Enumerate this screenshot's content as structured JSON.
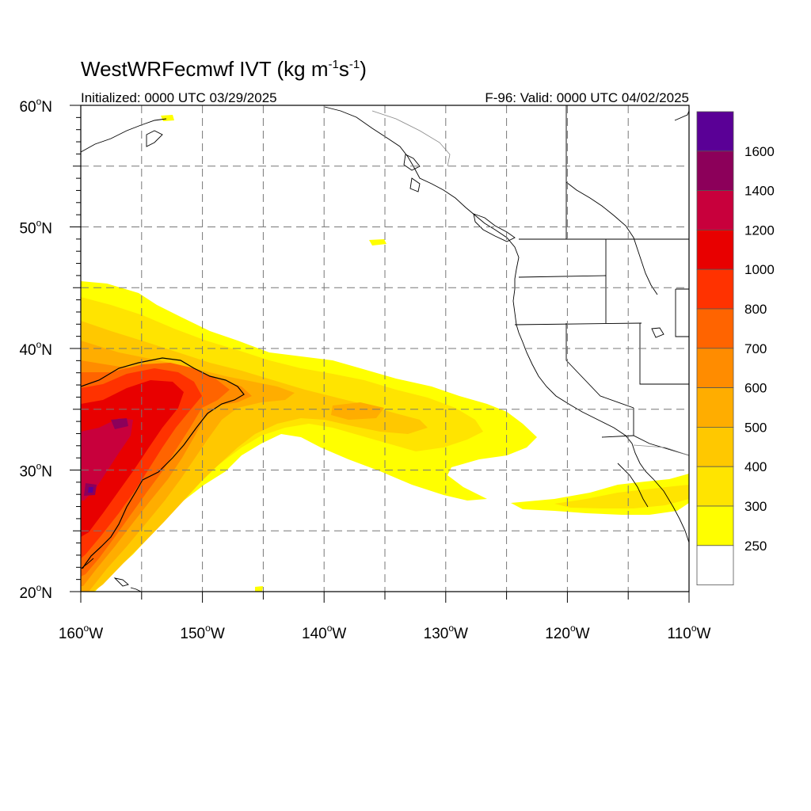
{
  "title": {
    "main": "WestWRFecmwf IVT (kg m",
    "sup1": "-1",
    "mid": "s",
    "sup2": "-1",
    "end": ")"
  },
  "initialized": "Initialized: 0000 UTC 03/29/2025",
  "valid": "F-96: Valid: 0000 UTC 04/02/2025",
  "map": {
    "lon_range": [
      -160,
      -110
    ],
    "lat_range": [
      20,
      60
    ],
    "projection": "cylindrical equidistant",
    "grid": "dashed every 5 degrees",
    "lat_labels": [
      "60",
      "50",
      "40",
      "30",
      "20"
    ],
    "lon_labels": [
      "160",
      "150",
      "140",
      "130",
      "120",
      "110"
    ],
    "lat_suffix": "N",
    "lon_suffix": "W",
    "degree": "o"
  },
  "colorbar": {
    "levels": [
      "250",
      "300",
      "400",
      "500",
      "600",
      "700",
      "800",
      "1000",
      "1200",
      "1400",
      "1600"
    ],
    "colors": [
      "#ffffff",
      "#ffff00",
      "#ffe400",
      "#ffc800",
      "#ffad00",
      "#ff8c00",
      "#ff6400",
      "#ff3200",
      "#e80000",
      "#c8003c",
      "#8c005a",
      "#5a0096"
    ]
  },
  "colors": {
    "ivt_250": "#ffff00",
    "ivt_300": "#ffe400",
    "ivt_400": "#ffc800",
    "ivt_500": "#ffad00",
    "ivt_600": "#ff8c00",
    "ivt_700": "#ff6400",
    "ivt_800": "#ff3200",
    "ivt_1000": "#e80000",
    "ivt_1200": "#c8003c",
    "ivt_1400": "#8c005a",
    "ivt_1600": "#5a0096"
  }
}
